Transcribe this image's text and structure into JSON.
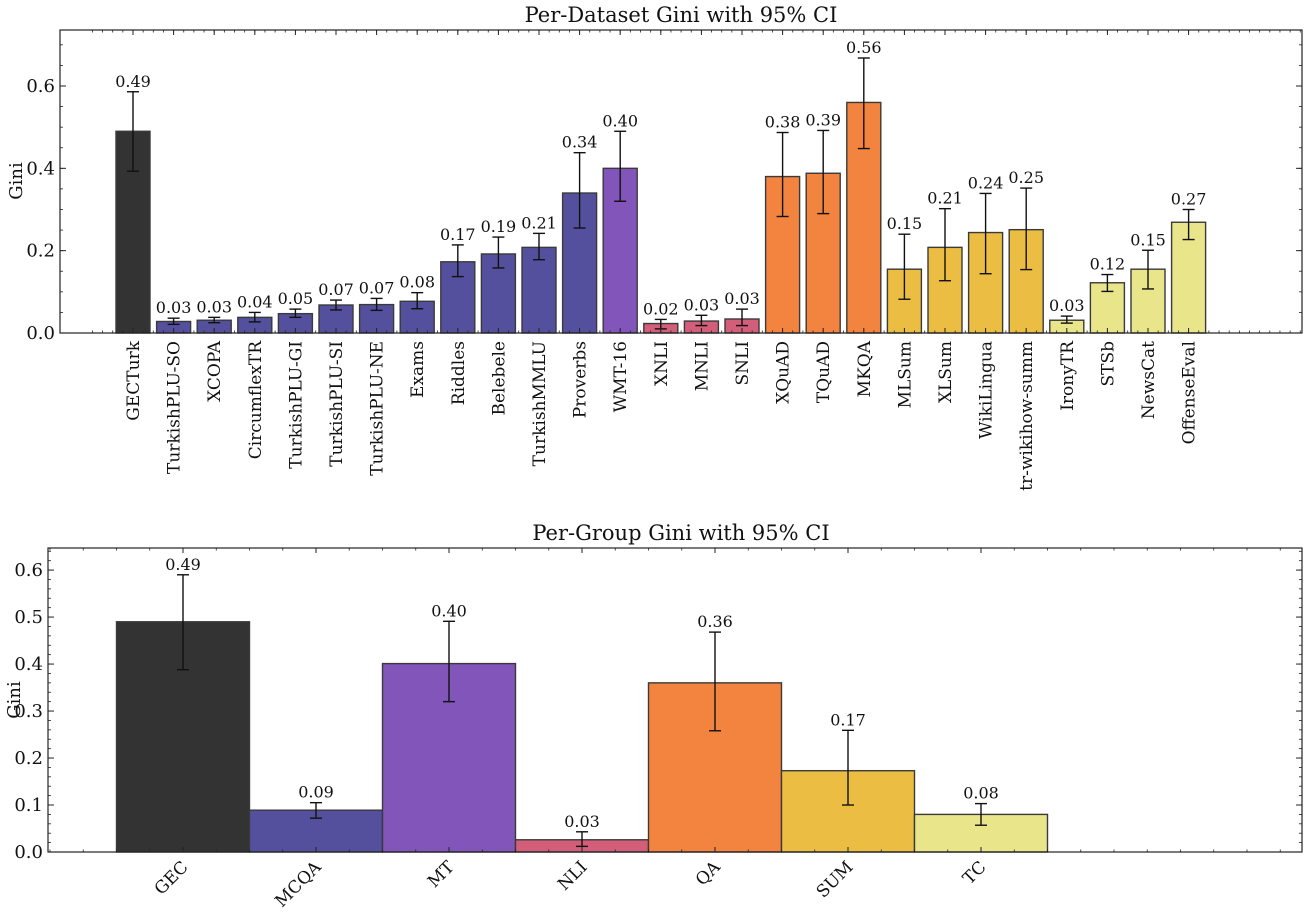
{
  "chart_data": [
    {
      "type": "bar",
      "title": "Per-Dataset Gini with 95% CI",
      "xlabel": "",
      "ylabel": "Gini",
      "ylim": [
        0,
        0.736
      ],
      "yticks": [
        0.0,
        0.2,
        0.4,
        0.6
      ],
      "ytick_labels": [
        "0.0",
        "0.2",
        "0.4",
        "0.6"
      ],
      "grid": false,
      "legend": "none",
      "xtick_rotation": "vertical",
      "categories": [
        "GECTurk",
        "TurkishPLU-SO",
        "XCOPA",
        "CircumflexTR",
        "TurkishPLU-GI",
        "TurkishPLU-SI",
        "TurkishPLU-NE",
        "Exams",
        "Riddles",
        "Belebele",
        "TurkishMMLU",
        "Proverbs",
        "WMT-16",
        "XNLI",
        "MNLI",
        "SNLI",
        "XQuAD",
        "TQuAD",
        "MKQA",
        "MLSum",
        "XLSum",
        "WikiLingua",
        "tr-wikihow-summ",
        "IronyTR",
        "STSb",
        "NewsCat",
        "OffenseEval"
      ],
      "values": [
        0.49,
        0.028,
        0.031,
        0.038,
        0.047,
        0.068,
        0.069,
        0.077,
        0.173,
        0.192,
        0.208,
        0.34,
        0.4,
        0.023,
        0.029,
        0.034,
        0.38,
        0.388,
        0.56,
        0.155,
        0.208,
        0.244,
        0.251,
        0.031,
        0.122,
        0.155,
        0.269
      ],
      "value_labels": [
        "0.49",
        "0.03",
        "0.03",
        "0.04",
        "0.05",
        "0.07",
        "0.07",
        "0.08",
        "0.17",
        "0.19",
        "0.21",
        "0.34",
        "0.40",
        "0.02",
        "0.03",
        "0.03",
        "0.38",
        "0.39",
        "0.56",
        "0.15",
        "0.21",
        "0.24",
        "0.25",
        "0.03",
        "0.12",
        "0.15",
        "0.27"
      ],
      "ci_low": [
        0.393,
        0.021,
        0.025,
        0.027,
        0.038,
        0.056,
        0.055,
        0.059,
        0.137,
        0.158,
        0.178,
        0.255,
        0.32,
        0.01,
        0.018,
        0.018,
        0.283,
        0.29,
        0.448,
        0.082,
        0.127,
        0.144,
        0.154,
        0.024,
        0.101,
        0.107,
        0.227
      ],
      "ci_high": [
        0.586,
        0.036,
        0.038,
        0.05,
        0.058,
        0.08,
        0.084,
        0.098,
        0.214,
        0.233,
        0.242,
        0.438,
        0.49,
        0.033,
        0.043,
        0.058,
        0.487,
        0.492,
        0.668,
        0.24,
        0.302,
        0.339,
        0.352,
        0.041,
        0.142,
        0.201,
        0.3
      ],
      "groups": [
        "GEC",
        "MCQA",
        "MCQA",
        "MCQA",
        "MCQA",
        "MCQA",
        "MCQA",
        "MCQA",
        "MCQA",
        "MCQA",
        "MCQA",
        "MCQA",
        "MT",
        "NLI",
        "NLI",
        "NLI",
        "QA",
        "QA",
        "QA",
        "SUM",
        "SUM",
        "SUM",
        "SUM",
        "TC",
        "TC",
        "TC",
        "TC"
      ]
    },
    {
      "type": "bar",
      "title": "Per-Group Gini with 95% CI",
      "xlabel": "",
      "ylabel": "Gini",
      "ylim": [
        0,
        0.647
      ],
      "yticks": [
        0.0,
        0.1,
        0.2,
        0.3,
        0.4,
        0.5,
        0.6
      ],
      "ytick_labels": [
        "0.0",
        "0.1",
        "0.2",
        "0.3",
        "0.4",
        "0.5",
        "0.6"
      ],
      "grid": false,
      "legend": "none",
      "xtick_rotation": "45",
      "categories": [
        "GEC",
        "MCQA",
        "MT",
        "NLI",
        "QA",
        "SUM",
        "TC"
      ],
      "values": [
        0.49,
        0.089,
        0.401,
        0.026,
        0.36,
        0.173,
        0.08
      ],
      "value_labels": [
        "0.49",
        "0.09",
        "0.40",
        "0.03",
        "0.36",
        "0.17",
        "0.08"
      ],
      "ci_low": [
        0.388,
        0.072,
        0.32,
        0.012,
        0.258,
        0.1,
        0.057
      ],
      "ci_high": [
        0.59,
        0.105,
        0.491,
        0.043,
        0.468,
        0.259,
        0.103
      ]
    }
  ],
  "group_colors": {
    "GEC": "#333333",
    "MCQA": "#55509e",
    "MT": "#8155b9",
    "NLI": "#d35e7a",
    "QA": "#f2843f",
    "SUM": "#ebbe43",
    "TC": "#e9e58a"
  }
}
